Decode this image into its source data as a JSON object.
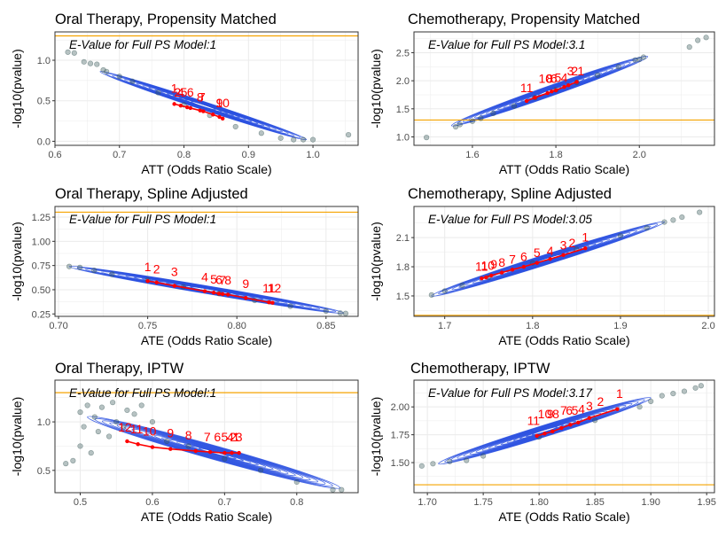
{
  "figure": {
    "background": "#ffffff",
    "panel_border": "#333333",
    "grid": "#ebebeb",
    "contour_color": "#2a50e0",
    "point_color": "#2f4f4f",
    "trend_color": "#ff0000",
    "threshold_color": "#f5a300"
  },
  "chart_data": [
    {
      "type": "scatter",
      "title": "Oral Therapy, Propensity Matched",
      "xlabel": "ATT (Odds Ratio Scale)",
      "ylabel": "-log10(pvalue)",
      "annotation": "E-Value for Full PS Model:1",
      "xlim": [
        0.6,
        1.07
      ],
      "ylim": [
        -0.05,
        1.35
      ],
      "xticks": [
        0.6,
        0.7,
        0.8,
        0.9,
        1.0
      ],
      "yticks": [
        0.0,
        0.5,
        1.0
      ],
      "tick_decimals": [
        1,
        1
      ],
      "threshold": 1.301,
      "grid": true,
      "band": {
        "start": [
          0.67,
          0.86
        ],
        "end": [
          0.99,
          0.02
        ],
        "width": 0.035
      },
      "scatter_points": [
        [
          0.62,
          1.1
        ],
        [
          0.63,
          1.09
        ],
        [
          0.645,
          0.98
        ],
        [
          0.655,
          0.96
        ],
        [
          0.665,
          0.95
        ],
        [
          0.675,
          0.88
        ],
        [
          0.68,
          0.86
        ],
        [
          0.7,
          0.8
        ],
        [
          0.72,
          0.74
        ],
        [
          0.76,
          0.6
        ],
        [
          0.8,
          0.45
        ],
        [
          0.84,
          0.32
        ],
        [
          0.88,
          0.18
        ],
        [
          0.92,
          0.1
        ],
        [
          0.95,
          0.04
        ],
        [
          0.97,
          0.02
        ],
        [
          0.985,
          0.02
        ],
        [
          1.0,
          0.02
        ],
        [
          1.055,
          0.08
        ]
      ],
      "trend": [
        [
          0.785,
          0.46
        ],
        [
          0.795,
          0.44
        ],
        [
          0.805,
          0.42
        ],
        [
          0.81,
          0.41
        ],
        [
          0.825,
          0.38
        ],
        [
          0.83,
          0.37
        ],
        [
          0.845,
          0.33
        ],
        [
          0.855,
          0.3
        ],
        [
          0.86,
          0.28
        ]
      ],
      "labels": [
        {
          "text": "1",
          "x": 0.785,
          "y": 0.6
        },
        {
          "text": "2",
          "x": 0.79,
          "y": 0.55
        },
        {
          "text": "4",
          "x": 0.795,
          "y": 0.55
        },
        {
          "text": "5",
          "x": 0.8,
          "y": 0.55
        },
        {
          "text": "6",
          "x": 0.81,
          "y": 0.55
        },
        {
          "text": "7",
          "x": 0.828,
          "y": 0.49
        },
        {
          "text": "8",
          "x": 0.825,
          "y": 0.49
        },
        {
          "text": "9",
          "x": 0.855,
          "y": 0.42
        },
        {
          "text": "10",
          "x": 0.86,
          "y": 0.42
        }
      ]
    },
    {
      "type": "scatter",
      "title": "Chemotherapy, Propensity Matched",
      "xlabel": "ATT (Odds Ratio Scale)",
      "ylabel": "-log10(pvalue)",
      "annotation": "E-Value for Full PS Model:3.1",
      "xlim": [
        1.46,
        2.18
      ],
      "ylim": [
        0.85,
        2.87
      ],
      "xticks": [
        1.6,
        1.8,
        2.0
      ],
      "yticks": [
        1.0,
        1.5,
        2.0,
        2.5
      ],
      "tick_decimals": [
        1,
        1
      ],
      "threshold": 1.301,
      "grid": true,
      "band": {
        "start": [
          1.55,
          1.2
        ],
        "end": [
          2.02,
          2.43
        ],
        "width": 0.045
      },
      "scatter_points": [
        [
          1.49,
          0.99
        ],
        [
          1.56,
          1.18
        ],
        [
          1.57,
          1.22
        ],
        [
          1.6,
          1.28
        ],
        [
          1.62,
          1.33
        ],
        [
          1.65,
          1.42
        ],
        [
          1.7,
          1.55
        ],
        [
          1.75,
          1.7
        ],
        [
          1.8,
          1.84
        ],
        [
          1.85,
          1.97
        ],
        [
          1.9,
          2.1
        ],
        [
          1.95,
          2.25
        ],
        [
          1.99,
          2.37
        ],
        [
          2.0,
          2.38
        ],
        [
          2.01,
          2.42
        ],
        [
          2.12,
          2.6
        ],
        [
          2.14,
          2.72
        ],
        [
          2.16,
          2.77
        ]
      ],
      "trend": [
        [
          1.73,
          1.64
        ],
        [
          1.75,
          1.7
        ],
        [
          1.78,
          1.78
        ],
        [
          1.79,
          1.81
        ],
        [
          1.8,
          1.83
        ],
        [
          1.82,
          1.89
        ],
        [
          1.83,
          1.92
        ],
        [
          1.85,
          1.98
        ]
      ],
      "labels": [
        {
          "text": "11",
          "x": 1.73,
          "y": 1.8
        },
        {
          "text": "10",
          "x": 1.775,
          "y": 1.96
        },
        {
          "text": "8",
          "x": 1.785,
          "y": 1.96
        },
        {
          "text": "6",
          "x": 1.795,
          "y": 1.96
        },
        {
          "text": "5",
          "x": 1.805,
          "y": 1.98
        },
        {
          "text": "4",
          "x": 1.82,
          "y": 1.98
        },
        {
          "text": "3",
          "x": 1.835,
          "y": 2.1
        },
        {
          "text": "2",
          "x": 1.845,
          "y": 2.1
        },
        {
          "text": "1",
          "x": 1.86,
          "y": 2.1
        }
      ]
    },
    {
      "type": "scatter",
      "title": "Oral Therapy, Spline Adjusted",
      "xlabel": "ATE (Odds Ratio Scale)",
      "ylabel": "-log10(pvalue)",
      "annotation": "E-Value for Full PS Model:1",
      "xlim": [
        0.698,
        0.868
      ],
      "ylim": [
        0.225,
        1.36
      ],
      "xticks": [
        0.7,
        0.75,
        0.8,
        0.85
      ],
      "yticks": [
        0.25,
        0.5,
        0.75,
        1.0,
        1.25
      ],
      "tick_decimals": [
        2,
        2
      ],
      "threshold": 1.301,
      "grid": true,
      "band": {
        "start": [
          0.706,
          0.74
        ],
        "end": [
          0.86,
          0.26
        ],
        "width": 0.035
      },
      "scatter_points": [
        [
          0.706,
          0.74
        ],
        [
          0.712,
          0.73
        ],
        [
          0.72,
          0.7
        ],
        [
          0.73,
          0.66
        ],
        [
          0.75,
          0.6
        ],
        [
          0.77,
          0.53
        ],
        [
          0.79,
          0.46
        ],
        [
          0.81,
          0.39
        ],
        [
          0.83,
          0.33
        ],
        [
          0.85,
          0.28
        ],
        [
          0.858,
          0.26
        ],
        [
          0.861,
          0.255
        ]
      ],
      "trend": [
        [
          0.75,
          0.59
        ],
        [
          0.755,
          0.575
        ],
        [
          0.765,
          0.54
        ],
        [
          0.782,
          0.485
        ],
        [
          0.787,
          0.47
        ],
        [
          0.79,
          0.46
        ],
        [
          0.792,
          0.455
        ],
        [
          0.795,
          0.45
        ],
        [
          0.805,
          0.415
        ],
        [
          0.818,
          0.37
        ],
        [
          0.82,
          0.365
        ]
      ],
      "labels": [
        {
          "text": "1",
          "x": 0.75,
          "y": 0.69
        },
        {
          "text": "2",
          "x": 0.755,
          "y": 0.67
        },
        {
          "text": "3",
          "x": 0.765,
          "y": 0.64
        },
        {
          "text": "4",
          "x": 0.782,
          "y": 0.585
        },
        {
          "text": "5",
          "x": 0.787,
          "y": 0.565
        },
        {
          "text": "6",
          "x": 0.79,
          "y": 0.56
        },
        {
          "text": "7",
          "x": 0.792,
          "y": 0.555
        },
        {
          "text": "8",
          "x": 0.795,
          "y": 0.555
        },
        {
          "text": "9",
          "x": 0.805,
          "y": 0.52
        },
        {
          "text": "11",
          "x": 0.818,
          "y": 0.47
        },
        {
          "text": "12",
          "x": 0.821,
          "y": 0.47
        }
      ]
    },
    {
      "type": "scatter",
      "title": "Chemotherapy, Spline Adjusted",
      "xlabel": "ATE (Odds Ratio Scale)",
      "ylabel": "-log10(pvalue)",
      "annotation": "E-Value for Full PS Model:3.05",
      "xlim": [
        1.665,
        2.007
      ],
      "ylim": [
        1.29,
        2.42
      ],
      "xticks": [
        1.7,
        1.8,
        1.9,
        2.0
      ],
      "yticks": [
        1.5,
        1.8,
        2.1
      ],
      "tick_decimals": [
        1,
        1
      ],
      "threshold": 1.301,
      "grid": true,
      "band": {
        "start": [
          1.685,
          1.5
        ],
        "end": [
          1.95,
          2.26
        ],
        "width": 0.045
      },
      "scatter_points": [
        [
          1.685,
          1.51
        ],
        [
          1.7,
          1.55
        ],
        [
          1.72,
          1.61
        ],
        [
          1.75,
          1.69
        ],
        [
          1.8,
          1.84
        ],
        [
          1.85,
          1.98
        ],
        [
          1.9,
          2.12
        ],
        [
          1.93,
          2.2
        ],
        [
          1.95,
          2.26
        ],
        [
          1.96,
          2.28
        ],
        [
          1.97,
          2.31
        ],
        [
          1.99,
          2.36
        ]
      ],
      "trend": [
        [
          1.742,
          1.68
        ],
        [
          1.747,
          1.69
        ],
        [
          1.753,
          1.71
        ],
        [
          1.765,
          1.74
        ],
        [
          1.777,
          1.77
        ],
        [
          1.79,
          1.8
        ],
        [
          1.805,
          1.84
        ],
        [
          1.82,
          1.88
        ],
        [
          1.835,
          1.92
        ],
        [
          1.86,
          1.99
        ]
      ],
      "labels": [
        {
          "text": "11",
          "x": 1.742,
          "y": 1.76
        },
        {
          "text": "10",
          "x": 1.749,
          "y": 1.77
        },
        {
          "text": "9",
          "x": 1.756,
          "y": 1.78
        },
        {
          "text": "8",
          "x": 1.765,
          "y": 1.8
        },
        {
          "text": "7",
          "x": 1.777,
          "y": 1.83
        },
        {
          "text": "6",
          "x": 1.79,
          "y": 1.86
        },
        {
          "text": "5",
          "x": 1.805,
          "y": 1.9
        },
        {
          "text": "4",
          "x": 1.82,
          "y": 1.92
        },
        {
          "text": "3",
          "x": 1.835,
          "y": 1.98
        },
        {
          "text": "2",
          "x": 1.845,
          "y": 2.0
        },
        {
          "text": "1",
          "x": 1.86,
          "y": 2.06
        }
      ]
    },
    {
      "type": "scatter",
      "title": "Oral Therapy, IPTW",
      "xlabel": "ATE (Odds Ratio Scale)",
      "ylabel": "-log10(pvalue)",
      "annotation": "E-Value for Full PS Model:1",
      "xlim": [
        0.465,
        0.885
      ],
      "ylim": [
        0.27,
        1.43
      ],
      "xticks": [
        0.5,
        0.6,
        0.7,
        0.8
      ],
      "yticks": [
        0.5,
        1.0
      ],
      "tick_decimals": [
        1,
        1
      ],
      "threshold": 1.301,
      "grid": true,
      "band": {
        "start": [
          0.51,
          1.05
        ],
        "end": [
          0.86,
          0.32
        ],
        "width": 0.06
      },
      "scatter_points": [
        [
          0.48,
          0.57
        ],
        [
          0.49,
          0.6
        ],
        [
          0.5,
          0.75
        ],
        [
          0.5,
          1.1
        ],
        [
          0.505,
          0.95
        ],
        [
          0.51,
          1.17
        ],
        [
          0.515,
          0.68
        ],
        [
          0.52,
          1.05
        ],
        [
          0.525,
          0.9
        ],
        [
          0.53,
          1.15
        ],
        [
          0.54,
          0.85
        ],
        [
          0.545,
          1.2
        ],
        [
          0.55,
          1.0
        ],
        [
          0.56,
          0.95
        ],
        [
          0.565,
          1.12
        ],
        [
          0.575,
          1.08
        ],
        [
          0.585,
          1.17
        ],
        [
          0.6,
          1.0
        ],
        [
          0.62,
          0.8
        ],
        [
          0.65,
          0.75
        ],
        [
          0.7,
          0.62
        ],
        [
          0.75,
          0.5
        ],
        [
          0.8,
          0.38
        ],
        [
          0.85,
          0.3
        ],
        [
          0.862,
          0.3
        ]
      ],
      "trend": [
        [
          0.565,
          0.8
        ],
        [
          0.58,
          0.77
        ],
        [
          0.6,
          0.74
        ],
        [
          0.625,
          0.72
        ],
        [
          0.66,
          0.7
        ],
        [
          0.68,
          0.69
        ],
        [
          0.7,
          0.68
        ],
        [
          0.71,
          0.68
        ],
        [
          0.72,
          0.68
        ]
      ],
      "labels": [
        {
          "text": "12",
          "x": 0.562,
          "y": 0.9
        },
        {
          "text": "11",
          "x": 0.578,
          "y": 0.88
        },
        {
          "text": "10",
          "x": 0.596,
          "y": 0.86
        },
        {
          "text": "9",
          "x": 0.625,
          "y": 0.84
        },
        {
          "text": "8",
          "x": 0.65,
          "y": 0.82
        },
        {
          "text": "7",
          "x": 0.676,
          "y": 0.8
        },
        {
          "text": "6",
          "x": 0.69,
          "y": 0.8
        },
        {
          "text": "5",
          "x": 0.7,
          "y": 0.8
        },
        {
          "text": "4",
          "x": 0.708,
          "y": 0.8
        },
        {
          "text": "2",
          "x": 0.712,
          "y": 0.8
        },
        {
          "text": "1",
          "x": 0.716,
          "y": 0.8
        },
        {
          "text": "3",
          "x": 0.72,
          "y": 0.8
        }
      ]
    },
    {
      "type": "scatter",
      "title": "Chemotherapy, IPTW",
      "xlabel": "ATE (Odds Ratio Scale)",
      "ylabel": "-log10(pvalue)",
      "annotation": "E-Value for Full PS Model:3.17",
      "xlim": [
        1.688,
        1.957
      ],
      "ylim": [
        1.23,
        2.24
      ],
      "xticks": [
        1.7,
        1.75,
        1.8,
        1.85,
        1.9,
        1.95
      ],
      "yticks": [
        1.5,
        1.75,
        2.0
      ],
      "tick_decimals": [
        2,
        2
      ],
      "threshold": 1.301,
      "grid": true,
      "band": {
        "start": [
          1.71,
          1.49
        ],
        "end": [
          1.9,
          2.08
        ],
        "width": 0.05
      },
      "scatter_points": [
        [
          1.695,
          1.47
        ],
        [
          1.705,
          1.49
        ],
        [
          1.72,
          1.51
        ],
        [
          1.735,
          1.52
        ],
        [
          1.75,
          1.56
        ],
        [
          1.8,
          1.73
        ],
        [
          1.85,
          1.88
        ],
        [
          1.89,
          2.0
        ],
        [
          1.9,
          2.05
        ],
        [
          1.91,
          2.1
        ],
        [
          1.92,
          2.12
        ],
        [
          1.93,
          2.14
        ],
        [
          1.94,
          2.17
        ],
        [
          1.945,
          2.19
        ]
      ],
      "trend": [
        [
          1.798,
          1.74
        ],
        [
          1.805,
          1.76
        ],
        [
          1.812,
          1.78
        ],
        [
          1.82,
          1.81
        ],
        [
          1.828,
          1.84
        ],
        [
          1.835,
          1.86
        ],
        [
          1.845,
          1.9
        ],
        [
          1.87,
          1.98
        ]
      ],
      "labels": [
        {
          "text": "11",
          "x": 1.795,
          "y": 1.84
        },
        {
          "text": "10",
          "x": 1.805,
          "y": 1.9
        },
        {
          "text": "9",
          "x": 1.81,
          "y": 1.9
        },
        {
          "text": "8",
          "x": 1.815,
          "y": 1.9
        },
        {
          "text": "7",
          "x": 1.822,
          "y": 1.93
        },
        {
          "text": "6",
          "x": 1.827,
          "y": 1.93
        },
        {
          "text": "5",
          "x": 1.832,
          "y": 1.93
        },
        {
          "text": "4",
          "x": 1.838,
          "y": 1.94
        },
        {
          "text": "3",
          "x": 1.845,
          "y": 1.97
        },
        {
          "text": "2",
          "x": 1.855,
          "y": 2.01
        },
        {
          "text": "1",
          "x": 1.872,
          "y": 2.08
        }
      ]
    }
  ]
}
